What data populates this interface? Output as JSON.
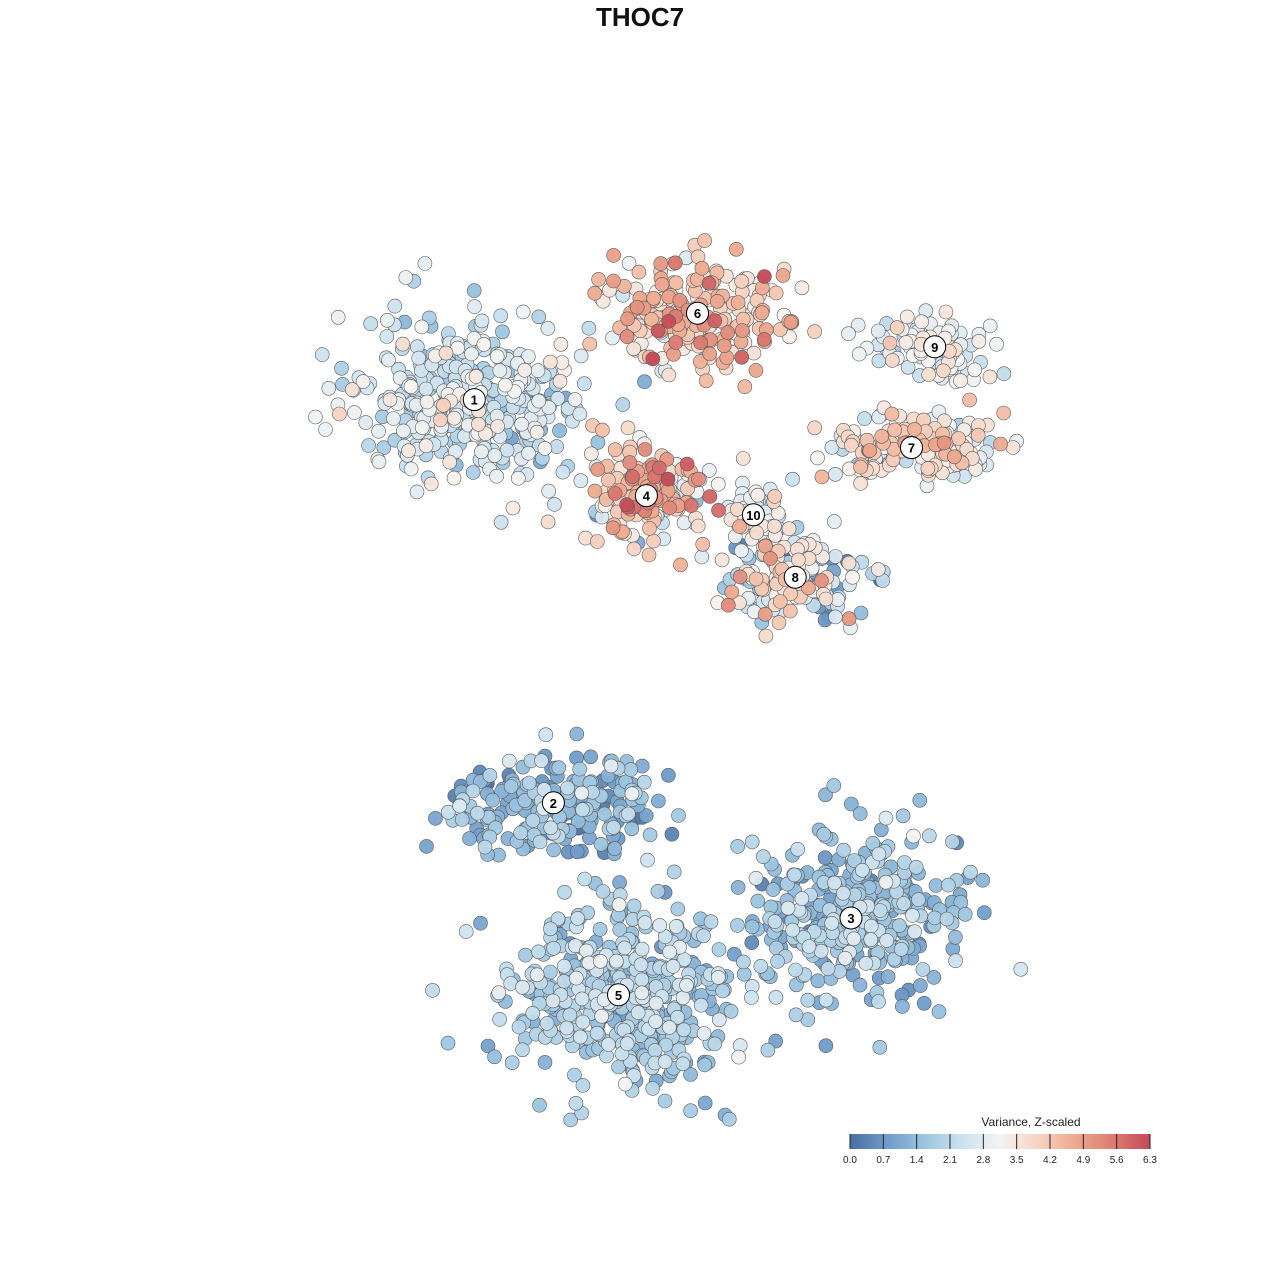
{
  "chart_data": {
    "type": "scatter",
    "title": "THOC7",
    "xlabel": "",
    "ylabel": "",
    "grid": false,
    "axes_visible": false,
    "xlim": [
      -50,
      50
    ],
    "ylim": [
      -50,
      50
    ],
    "color_scale": {
      "title": "Variance, Z-scaled",
      "min": 0.0,
      "max": 6.3,
      "ticks": [
        "0.0",
        "0.7",
        "1.4",
        "2.1",
        "2.8",
        "3.5",
        "4.2",
        "4.9",
        "5.6",
        "6.3"
      ],
      "colors": [
        "#4a6f9e",
        "#6f9ccb",
        "#9cc5e0",
        "#cde2ef",
        "#f4f4f2",
        "#f7d4c2",
        "#eea98f",
        "#dc7c72",
        "#c44a57"
      ],
      "placement": "bottom-right"
    },
    "clusters": [
      {
        "label": "1",
        "x": -20.5,
        "y": 24.0,
        "spread_x": 11,
        "spread_y": 8,
        "n": 420,
        "mean": 2.4,
        "sd": 0.6
      },
      {
        "label": "2",
        "x": -12.0,
        "y": -18.0,
        "spread_x": 10,
        "spread_y": 5,
        "n": 220,
        "mean": 1.3,
        "sd": 0.6
      },
      {
        "label": "3",
        "x": 20.0,
        "y": -30.0,
        "spread_x": 10,
        "spread_y": 8,
        "n": 380,
        "mean": 1.6,
        "sd": 0.5
      },
      {
        "label": "4",
        "x": -2.0,
        "y": 14.0,
        "spread_x": 6,
        "spread_y": 5,
        "n": 200,
        "mean": 3.8,
        "sd": 1.2
      },
      {
        "label": "5",
        "x": -5.0,
        "y": -38.0,
        "spread_x": 11,
        "spread_y": 9,
        "n": 480,
        "mean": 1.8,
        "sd": 0.5
      },
      {
        "label": "6",
        "x": 3.5,
        "y": 33.0,
        "spread_x": 9,
        "spread_y": 5,
        "n": 240,
        "mean": 4.0,
        "sd": 0.9
      },
      {
        "label": "7",
        "x": 26.5,
        "y": 19.0,
        "spread_x": 9,
        "spread_y": 3,
        "n": 170,
        "mean": 3.4,
        "sd": 0.7
      },
      {
        "label": "8",
        "x": 14.0,
        "y": 5.5,
        "spread_x": 7,
        "spread_y": 4,
        "n": 160,
        "mean": 2.6,
        "sd": 1.2
      },
      {
        "label": "9",
        "x": 29.0,
        "y": 29.5,
        "spread_x": 6,
        "spread_y": 3,
        "n": 100,
        "mean": 2.9,
        "sd": 0.5
      },
      {
        "label": "10",
        "x": 9.5,
        "y": 12.0,
        "spread_x": 3,
        "spread_y": 3,
        "n": 60,
        "mean": 3.0,
        "sd": 0.6
      }
    ]
  }
}
